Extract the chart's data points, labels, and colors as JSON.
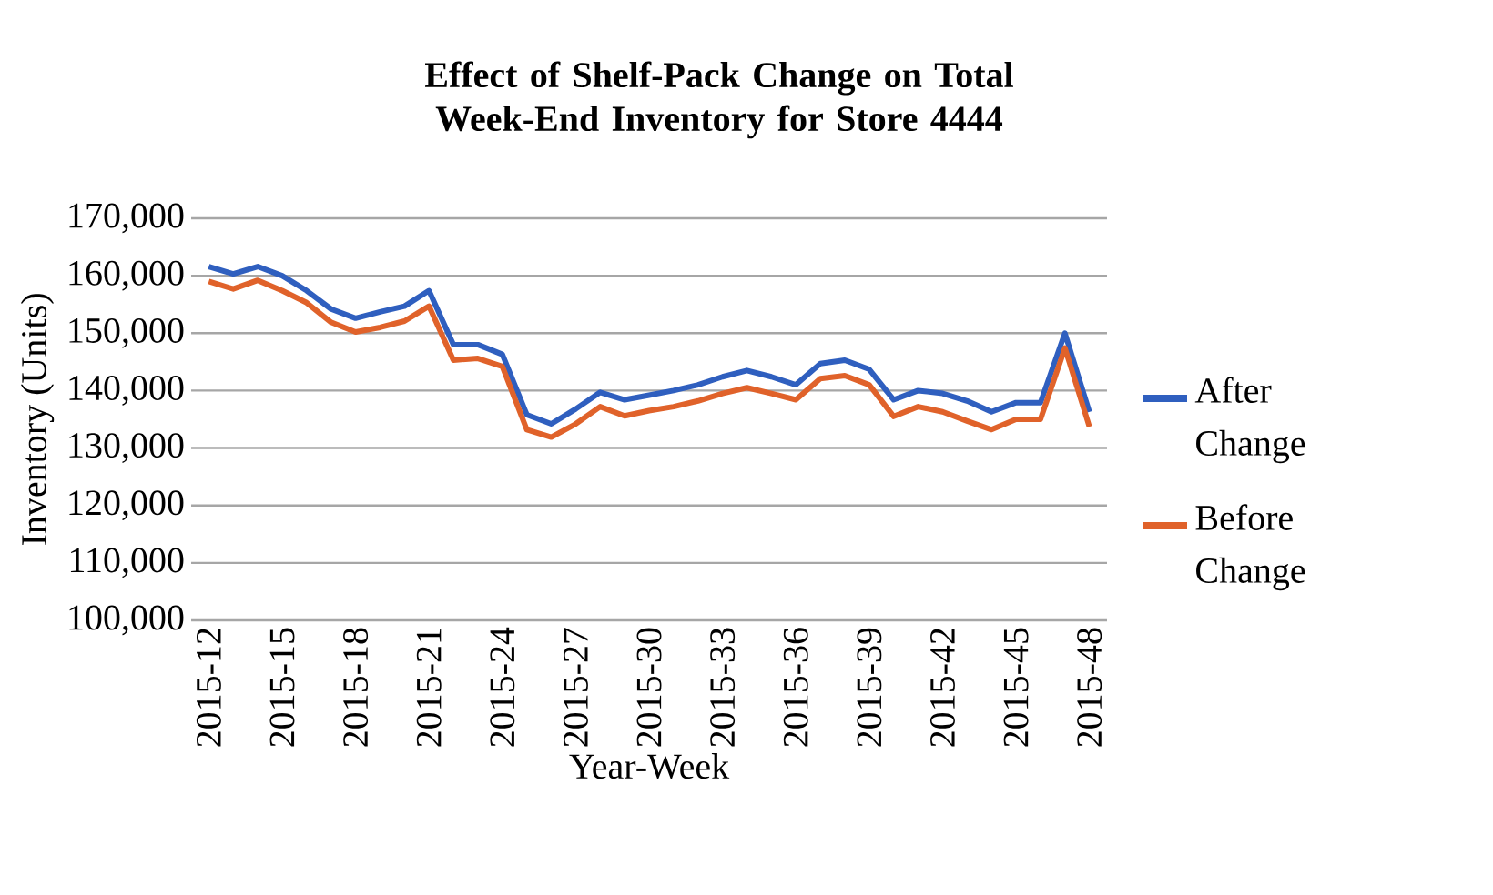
{
  "chart_data": {
    "type": "line",
    "title": "Effect of Shelf-Pack Change on Total Week-End Inventory for Store 4444",
    "xlabel": "Year-Week",
    "ylabel": "Inventory (Units)",
    "categories": [
      "2015-12",
      null,
      null,
      "2015-15",
      null,
      null,
      "2015-18",
      null,
      null,
      "2015-21",
      null,
      null,
      "2015-24",
      null,
      null,
      "2015-27",
      null,
      null,
      "2015-30",
      null,
      null,
      "2015-33",
      null,
      null,
      "2015-36",
      null,
      null,
      "2015-39",
      null,
      null,
      "2015-42",
      null,
      null,
      "2015-45",
      null,
      null,
      "2015-48"
    ],
    "series": [
      {
        "name": "After Change",
        "color": "#2f5fbf",
        "values": [
          161600,
          160300,
          161600,
          160000,
          157400,
          154200,
          152600,
          153700,
          154700,
          157400,
          148000,
          148000,
          146300,
          135800,
          134200,
          136800,
          139700,
          138400,
          139200,
          140000,
          141000,
          142400,
          143500,
          142400,
          141000,
          144700,
          145300,
          143700,
          138400,
          140000,
          139500,
          138200,
          136300,
          137900,
          137900,
          150000,
          136300
        ]
      },
      {
        "name": "Before Change",
        "color": "#e0622a",
        "values": [
          159000,
          157700,
          159200,
          157400,
          155300,
          151900,
          150200,
          151000,
          152100,
          154700,
          145300,
          145600,
          144200,
          133200,
          131900,
          134200,
          137200,
          135600,
          136500,
          137200,
          138200,
          139500,
          140500,
          139500,
          138400,
          142100,
          142600,
          141000,
          135500,
          137200,
          136300,
          134700,
          133200,
          135000,
          135000,
          147400,
          133700
        ]
      }
    ],
    "ylim": [
      100000,
      170000
    ],
    "yticks": [
      {
        "value": 100000,
        "label": "100,000"
      },
      {
        "value": 110000,
        "label": "110,000"
      },
      {
        "value": 120000,
        "label": "120,000"
      },
      {
        "value": 130000,
        "label": "130,000"
      },
      {
        "value": 140000,
        "label": "140,000"
      },
      {
        "value": 150000,
        "label": "150,000"
      },
      {
        "value": 160000,
        "label": "160,000"
      },
      {
        "value": 170000,
        "label": "170,000"
      }
    ],
    "grid": "y",
    "legend": "right",
    "marker": "none",
    "line_style": "solid"
  }
}
